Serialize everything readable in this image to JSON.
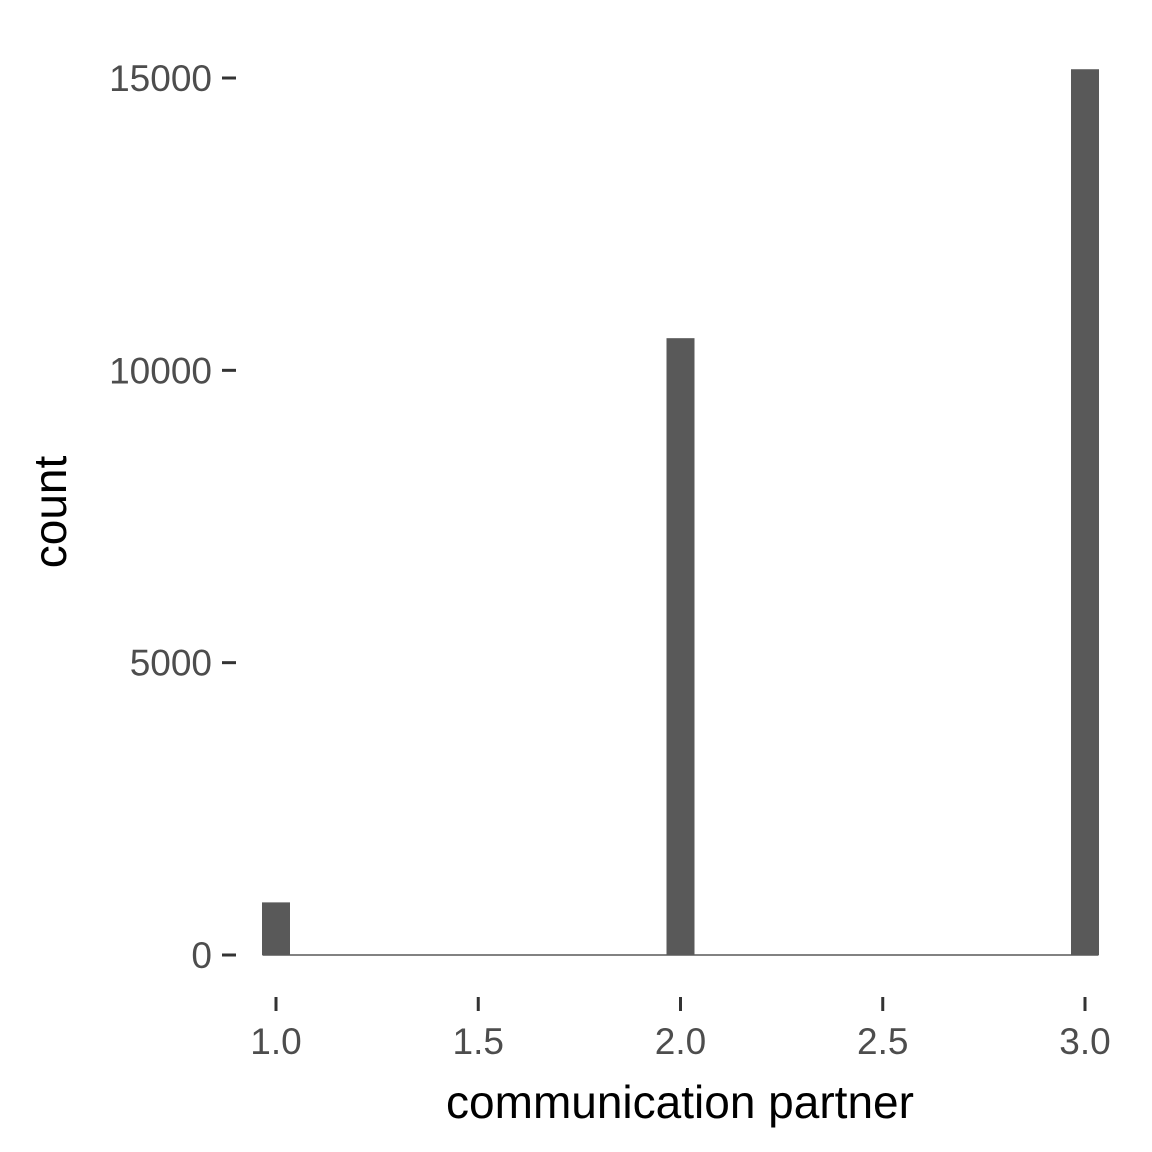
{
  "chart_data": {
    "type": "bar",
    "title": "",
    "xlabel": "communication partner",
    "ylabel": "count",
    "x_ticks": [
      "1.0",
      "1.5",
      "2.0",
      "2.5",
      "3.0"
    ],
    "x_tick_values": [
      1.0,
      1.5,
      2.0,
      2.5,
      3.0
    ],
    "y_ticks": [
      "0",
      "5000",
      "10000",
      "15000"
    ],
    "y_tick_values": [
      0,
      5000,
      10000,
      15000
    ],
    "xlim": [
      0.95,
      3.05
    ],
    "ylim": [
      0,
      15000
    ],
    "bin_width": 0.0667,
    "bars": [
      {
        "x": 1.0,
        "count": 900
      },
      {
        "x": 2.0,
        "count": 10550
      },
      {
        "x": 3.0,
        "count": 15150
      }
    ],
    "bar_color": "#595959",
    "baseline_color": "#595959",
    "grid": false
  }
}
